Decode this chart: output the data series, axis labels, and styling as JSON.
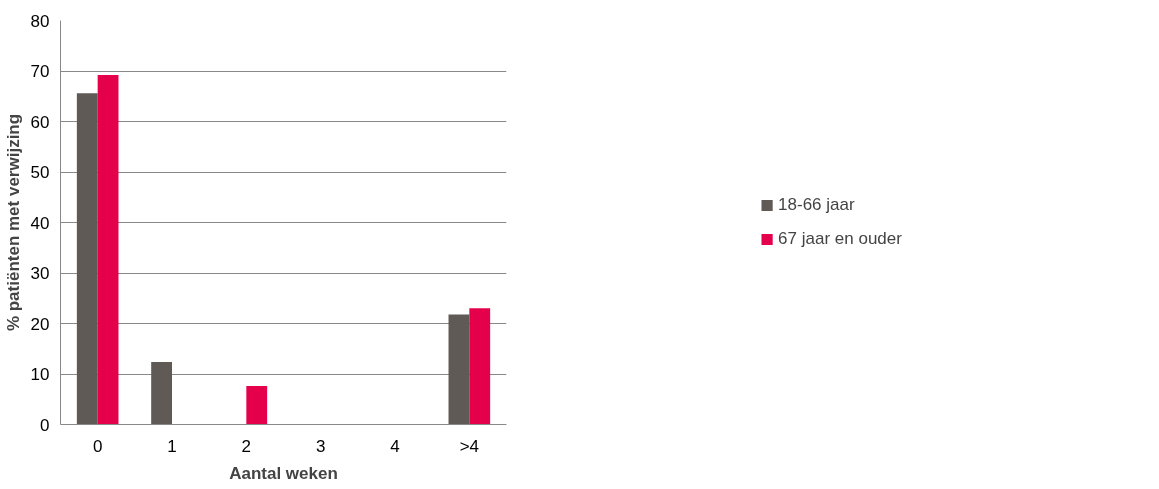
{
  "chart_data": {
    "type": "bar",
    "xlabel": "Aantal weken",
    "ylabel": "% patiënten met verwijzing",
    "categories": [
      "0",
      "1",
      "2",
      "3",
      "4",
      ">4"
    ],
    "series": [
      {
        "name": "18-66 jaar",
        "color": "#5f5a56",
        "values": [
          65.6,
          12.4,
          0,
          0,
          0,
          21.8
        ]
      },
      {
        "name": "67 jaar en ouder",
        "color": "#e4004b",
        "values": [
          69.2,
          0,
          7.6,
          0,
          0,
          23.0
        ]
      }
    ],
    "ylim": [
      0,
      80
    ],
    "yticks": [
      0,
      10,
      20,
      30,
      40,
      50,
      60,
      70,
      80
    ],
    "grid": "y",
    "legend": "right"
  }
}
